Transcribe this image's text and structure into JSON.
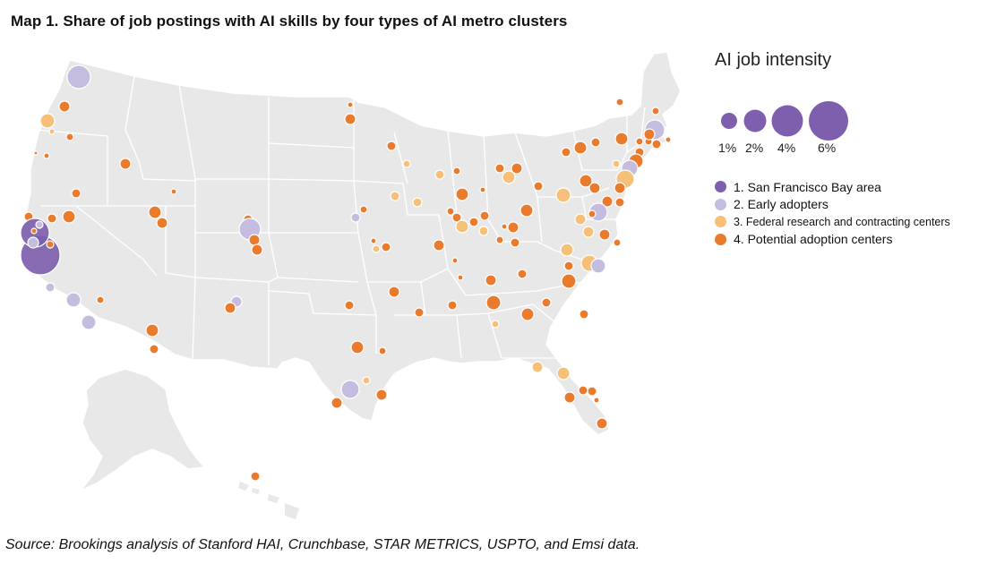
{
  "title": "Map 1. Share of job postings with AI skills by four types of AI metro clusters",
  "legend": {
    "title": "AI job intensity",
    "sizes": [
      {
        "label": "1%",
        "value": 1
      },
      {
        "label": "2%",
        "value": 2
      },
      {
        "label": "4%",
        "value": 4
      },
      {
        "label": "6%",
        "value": 6
      }
    ],
    "categories": [
      {
        "id": "sf",
        "label": "1. San Francisco Bay area",
        "color": "#7d5fad"
      },
      {
        "id": "early",
        "label": "2. Early adopters",
        "color": "#c4bde0"
      },
      {
        "id": "federal",
        "label": "3. Federal research and contracting centers",
        "color": "#f7c078"
      },
      {
        "id": "potential",
        "label": "4. Potential adoption centers",
        "color": "#ea7a2c"
      }
    ]
  },
  "source": "Source: Brookings analysis of Stanford HAI, Crunchbase, STAR METRICS, USPTO, and Emsi data.",
  "colors": {
    "land": "#e8e8e8",
    "border": "#ffffff"
  }
}
